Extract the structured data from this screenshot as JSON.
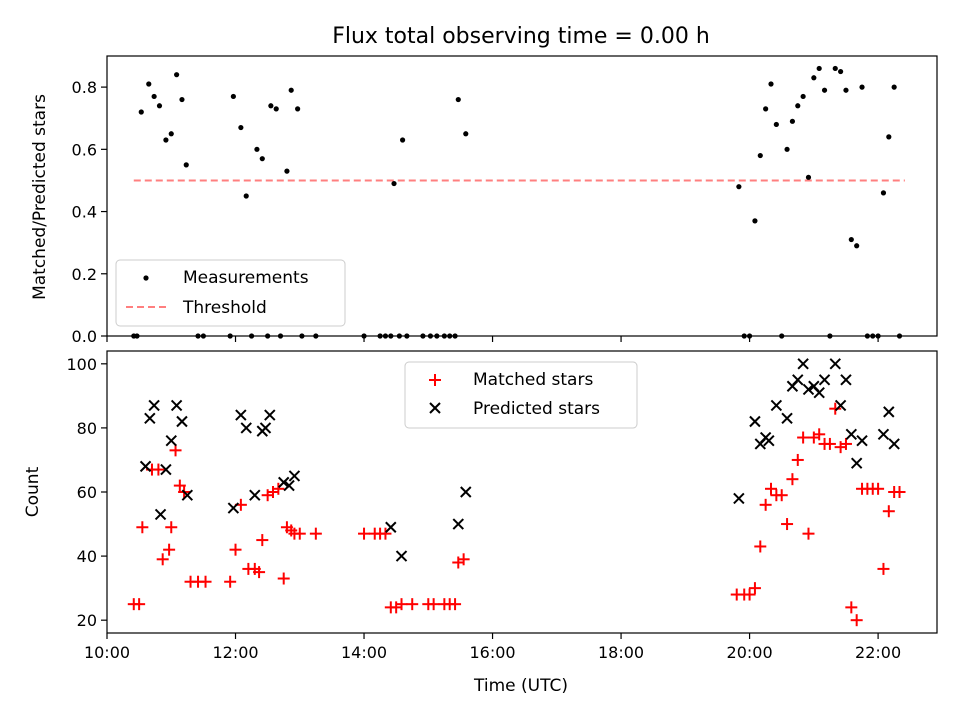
{
  "chart_data": [
    {
      "type": "scatter",
      "title": "Flux total observing time = 0.00 h",
      "ylabel": "Matched/Predicted stars",
      "xlim": [
        "10:00",
        "22:55"
      ],
      "ylim": [
        0,
        0.9
      ],
      "yticks": [
        "0.0",
        "0.2",
        "0.4",
        "0.6",
        "0.8"
      ],
      "legend_position": "lower-left",
      "legend": [
        "Measurements",
        "Threshold"
      ],
      "threshold": {
        "name": "Threshold",
        "y": 0.5,
        "x_range": [
          "10:25",
          "22:25"
        ],
        "color": "#ff7f7f"
      },
      "series": [
        {
          "name": "Measurements",
          "color": "#000000",
          "points": [
            [
              "10:25",
              0.0
            ],
            [
              "10:28",
              0.0
            ],
            [
              "10:32",
              0.72
            ],
            [
              "10:39",
              0.81
            ],
            [
              "10:44",
              0.77
            ],
            [
              "10:49",
              0.74
            ],
            [
              "10:55",
              0.63
            ],
            [
              "11:00",
              0.65
            ],
            [
              "11:05",
              0.84
            ],
            [
              "11:10",
              0.76
            ],
            [
              "11:14",
              0.55
            ],
            [
              "11:25",
              0.0
            ],
            [
              "11:30",
              0.0
            ],
            [
              "11:55",
              0.0
            ],
            [
              "11:58",
              0.77
            ],
            [
              "12:05",
              0.67
            ],
            [
              "12:10",
              0.45
            ],
            [
              "12:15",
              0.0
            ],
            [
              "12:20",
              0.6
            ],
            [
              "12:25",
              0.57
            ],
            [
              "12:30",
              0.0
            ],
            [
              "12:33",
              0.74
            ],
            [
              "12:38",
              0.73
            ],
            [
              "12:42",
              0.0
            ],
            [
              "12:48",
              0.53
            ],
            [
              "12:52",
              0.79
            ],
            [
              "12:58",
              0.73
            ],
            [
              "13:02",
              0.0
            ],
            [
              "13:15",
              0.0
            ],
            [
              "14:00",
              0.0
            ],
            [
              "14:15",
              0.0
            ],
            [
              "14:20",
              0.0
            ],
            [
              "14:25",
              0.0
            ],
            [
              "14:28",
              0.49
            ],
            [
              "14:33",
              0.0
            ],
            [
              "14:36",
              0.63
            ],
            [
              "14:40",
              0.0
            ],
            [
              "14:55",
              0.0
            ],
            [
              "15:02",
              0.0
            ],
            [
              "15:08",
              0.0
            ],
            [
              "15:15",
              0.0
            ],
            [
              "15:20",
              0.0
            ],
            [
              "15:25",
              0.0
            ],
            [
              "15:28",
              0.76
            ],
            [
              "15:35",
              0.65
            ],
            [
              "19:50",
              0.48
            ],
            [
              "19:55",
              0.0
            ],
            [
              "20:00",
              0.0
            ],
            [
              "20:05",
              0.37
            ],
            [
              "20:10",
              0.58
            ],
            [
              "20:15",
              0.73
            ],
            [
              "20:20",
              0.81
            ],
            [
              "20:25",
              0.68
            ],
            [
              "20:30",
              0.0
            ],
            [
              "20:35",
              0.6
            ],
            [
              "20:40",
              0.69
            ],
            [
              "20:45",
              0.74
            ],
            [
              "20:50",
              0.77
            ],
            [
              "20:55",
              0.51
            ],
            [
              "21:00",
              0.83
            ],
            [
              "21:05",
              0.86
            ],
            [
              "21:10",
              0.79
            ],
            [
              "21:15",
              0.0
            ],
            [
              "21:20",
              0.86
            ],
            [
              "21:25",
              0.85
            ],
            [
              "21:30",
              0.79
            ],
            [
              "21:35",
              0.31
            ],
            [
              "21:40",
              0.29
            ],
            [
              "21:45",
              0.8
            ],
            [
              "21:50",
              0.0
            ],
            [
              "21:55",
              0.0
            ],
            [
              "22:00",
              0.0
            ],
            [
              "22:05",
              0.46
            ],
            [
              "22:10",
              0.64
            ],
            [
              "22:15",
              0.8
            ],
            [
              "22:20",
              0.0
            ]
          ]
        }
      ]
    },
    {
      "type": "scatter",
      "xlabel": "Time (UTC)",
      "ylabel": "Count",
      "xlim": [
        "10:00",
        "22:55"
      ],
      "ylim": [
        16,
        104
      ],
      "xticks": [
        "10:00",
        "12:00",
        "14:00",
        "16:00",
        "18:00",
        "20:00",
        "22:00"
      ],
      "yticks": [
        "20",
        "40",
        "60",
        "80",
        "100"
      ],
      "legend_position": "upper-center",
      "legend": [
        "Matched stars",
        "Predicted stars"
      ],
      "series": [
        {
          "name": "Matched stars",
          "marker": "+",
          "color": "#ff0000",
          "points": [
            [
              "10:25",
              25
            ],
            [
              "10:30",
              25
            ],
            [
              "10:33",
              49
            ],
            [
              "10:42",
              67
            ],
            [
              "10:48",
              67
            ],
            [
              "10:52",
              39
            ],
            [
              "10:58",
              42
            ],
            [
              "11:00",
              49
            ],
            [
              "11:04",
              73
            ],
            [
              "11:08",
              62
            ],
            [
              "11:12",
              60
            ],
            [
              "11:18",
              32
            ],
            [
              "11:25",
              32
            ],
            [
              "11:32",
              32
            ],
            [
              "11:55",
              32
            ],
            [
              "12:00",
              42
            ],
            [
              "12:05",
              56
            ],
            [
              "12:12",
              36
            ],
            [
              "12:18",
              36
            ],
            [
              "12:22",
              35
            ],
            [
              "12:25",
              45
            ],
            [
              "12:30",
              59
            ],
            [
              "12:35",
              60
            ],
            [
              "12:40",
              61
            ],
            [
              "12:45",
              33
            ],
            [
              "12:48",
              49
            ],
            [
              "12:52",
              48
            ],
            [
              "12:55",
              47
            ],
            [
              "13:00",
              47
            ],
            [
              "13:15",
              47
            ],
            [
              "14:00",
              47
            ],
            [
              "14:10",
              47
            ],
            [
              "14:15",
              47
            ],
            [
              "14:20",
              47
            ],
            [
              "14:25",
              24
            ],
            [
              "14:30",
              24
            ],
            [
              "14:35",
              25
            ],
            [
              "14:45",
              25
            ],
            [
              "15:00",
              25
            ],
            [
              "15:05",
              25
            ],
            [
              "15:15",
              25
            ],
            [
              "15:20",
              25
            ],
            [
              "15:25",
              25
            ],
            [
              "15:28",
              38
            ],
            [
              "15:33",
              39
            ],
            [
              "19:48",
              28
            ],
            [
              "19:55",
              28
            ],
            [
              "20:00",
              28
            ],
            [
              "20:05",
              30
            ],
            [
              "20:10",
              43
            ],
            [
              "20:15",
              56
            ],
            [
              "20:20",
              61
            ],
            [
              "20:25",
              59
            ],
            [
              "20:30",
              59
            ],
            [
              "20:35",
              50
            ],
            [
              "20:40",
              64
            ],
            [
              "20:45",
              70
            ],
            [
              "20:50",
              77
            ],
            [
              "20:55",
              47
            ],
            [
              "21:00",
              77
            ],
            [
              "21:05",
              78
            ],
            [
              "21:10",
              75
            ],
            [
              "21:15",
              75
            ],
            [
              "21:20",
              86
            ],
            [
              "21:25",
              74
            ],
            [
              "21:30",
              75
            ],
            [
              "21:35",
              24
            ],
            [
              "21:40",
              20
            ],
            [
              "21:45",
              61
            ],
            [
              "21:50",
              61
            ],
            [
              "21:55",
              61
            ],
            [
              "22:00",
              61
            ],
            [
              "22:05",
              36
            ],
            [
              "22:10",
              54
            ],
            [
              "22:15",
              60
            ],
            [
              "22:20",
              60
            ]
          ]
        },
        {
          "name": "Predicted stars",
          "marker": "x",
          "color": "#000000",
          "points": [
            [
              "10:36",
              68
            ],
            [
              "10:40",
              83
            ],
            [
              "10:44",
              87
            ],
            [
              "10:50",
              53
            ],
            [
              "10:55",
              67
            ],
            [
              "11:00",
              76
            ],
            [
              "11:05",
              87
            ],
            [
              "11:10",
              82
            ],
            [
              "11:15",
              59
            ],
            [
              "11:58",
              55
            ],
            [
              "12:05",
              84
            ],
            [
              "12:10",
              80
            ],
            [
              "12:18",
              59
            ],
            [
              "12:25",
              79
            ],
            [
              "12:28",
              80
            ],
            [
              "12:32",
              84
            ],
            [
              "12:45",
              63
            ],
            [
              "12:50",
              62
            ],
            [
              "12:55",
              65
            ],
            [
              "14:25",
              49
            ],
            [
              "14:35",
              40
            ],
            [
              "15:28",
              50
            ],
            [
              "15:35",
              60
            ],
            [
              "19:50",
              58
            ],
            [
              "20:05",
              82
            ],
            [
              "20:10",
              75
            ],
            [
              "20:15",
              77
            ],
            [
              "20:18",
              76
            ],
            [
              "20:25",
              87
            ],
            [
              "20:35",
              83
            ],
            [
              "20:40",
              93
            ],
            [
              "20:45",
              95
            ],
            [
              "20:50",
              100
            ],
            [
              "20:55",
              92
            ],
            [
              "21:00",
              93
            ],
            [
              "21:05",
              91
            ],
            [
              "21:10",
              95
            ],
            [
              "21:20",
              100
            ],
            [
              "21:25",
              87
            ],
            [
              "21:30",
              95
            ],
            [
              "21:35",
              78
            ],
            [
              "21:40",
              69
            ],
            [
              "21:45",
              76
            ],
            [
              "22:05",
              78
            ],
            [
              "22:10",
              85
            ],
            [
              "22:15",
              75
            ]
          ]
        }
      ]
    }
  ]
}
